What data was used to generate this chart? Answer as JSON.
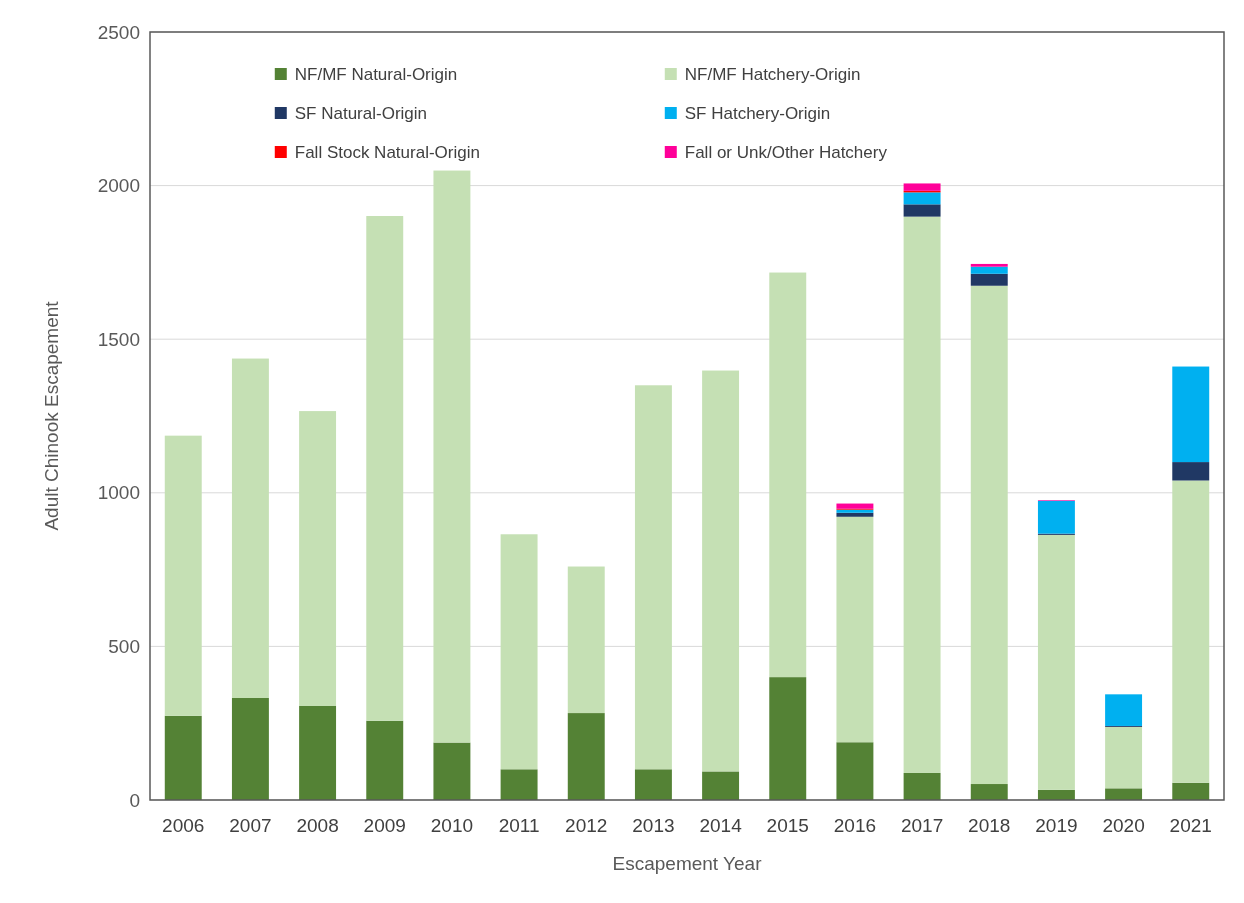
{
  "chart_data": {
    "type": "bar",
    "stacked": true,
    "xlabel": "Escapement Year",
    "ylabel": "Adult Chinook Escapement",
    "categories": [
      "2006",
      "2007",
      "2008",
      "2009",
      "2010",
      "2011",
      "2012",
      "2013",
      "2014",
      "2015",
      "2016",
      "2017",
      "2018",
      "2019",
      "2020",
      "2021"
    ],
    "series": [
      {
        "name": "NF/MF Natural-Origin",
        "color": "#548235",
        "values": [
          274,
          332,
          306,
          258,
          187,
          100,
          283,
          100,
          93,
          400,
          188,
          88,
          52,
          33,
          38,
          56
        ]
      },
      {
        "name": "NF/MF Hatchery-Origin",
        "color": "#c5e0b4",
        "values": [
          912,
          1105,
          960,
          1643,
          1862,
          765,
          477,
          1250,
          1305,
          1317,
          734,
          1811,
          1622,
          830,
          200,
          984
        ]
      },
      {
        "name": "SF Natural-Origin",
        "color": "#203864",
        "values": [
          0,
          0,
          0,
          0,
          0,
          0,
          0,
          0,
          0,
          0,
          13,
          40,
          39,
          4,
          3,
          60
        ]
      },
      {
        "name": "SF Hatchery-Origin",
        "color": "#00b0f0",
        "values": [
          0,
          0,
          0,
          0,
          0,
          0,
          0,
          0,
          0,
          0,
          10,
          39,
          23,
          107,
          103,
          311
        ]
      },
      {
        "name": "Fall Stock Natural-Origin",
        "color": "#ff0000",
        "values": [
          0,
          0,
          0,
          0,
          0,
          0,
          0,
          0,
          0,
          0,
          3,
          5,
          0,
          0,
          0,
          0
        ]
      },
      {
        "name": "Fall or Unk/Other Hatchery",
        "color": "#ff0099",
        "values": [
          0,
          0,
          0,
          0,
          0,
          0,
          0,
          0,
          0,
          0,
          17,
          24,
          9,
          2,
          0,
          0
        ]
      }
    ],
    "ylim": [
      0,
      2500
    ],
    "yticks": [
      0,
      500,
      1000,
      1500,
      2000,
      2500
    ],
    "grid": "y",
    "legend": "top"
  }
}
